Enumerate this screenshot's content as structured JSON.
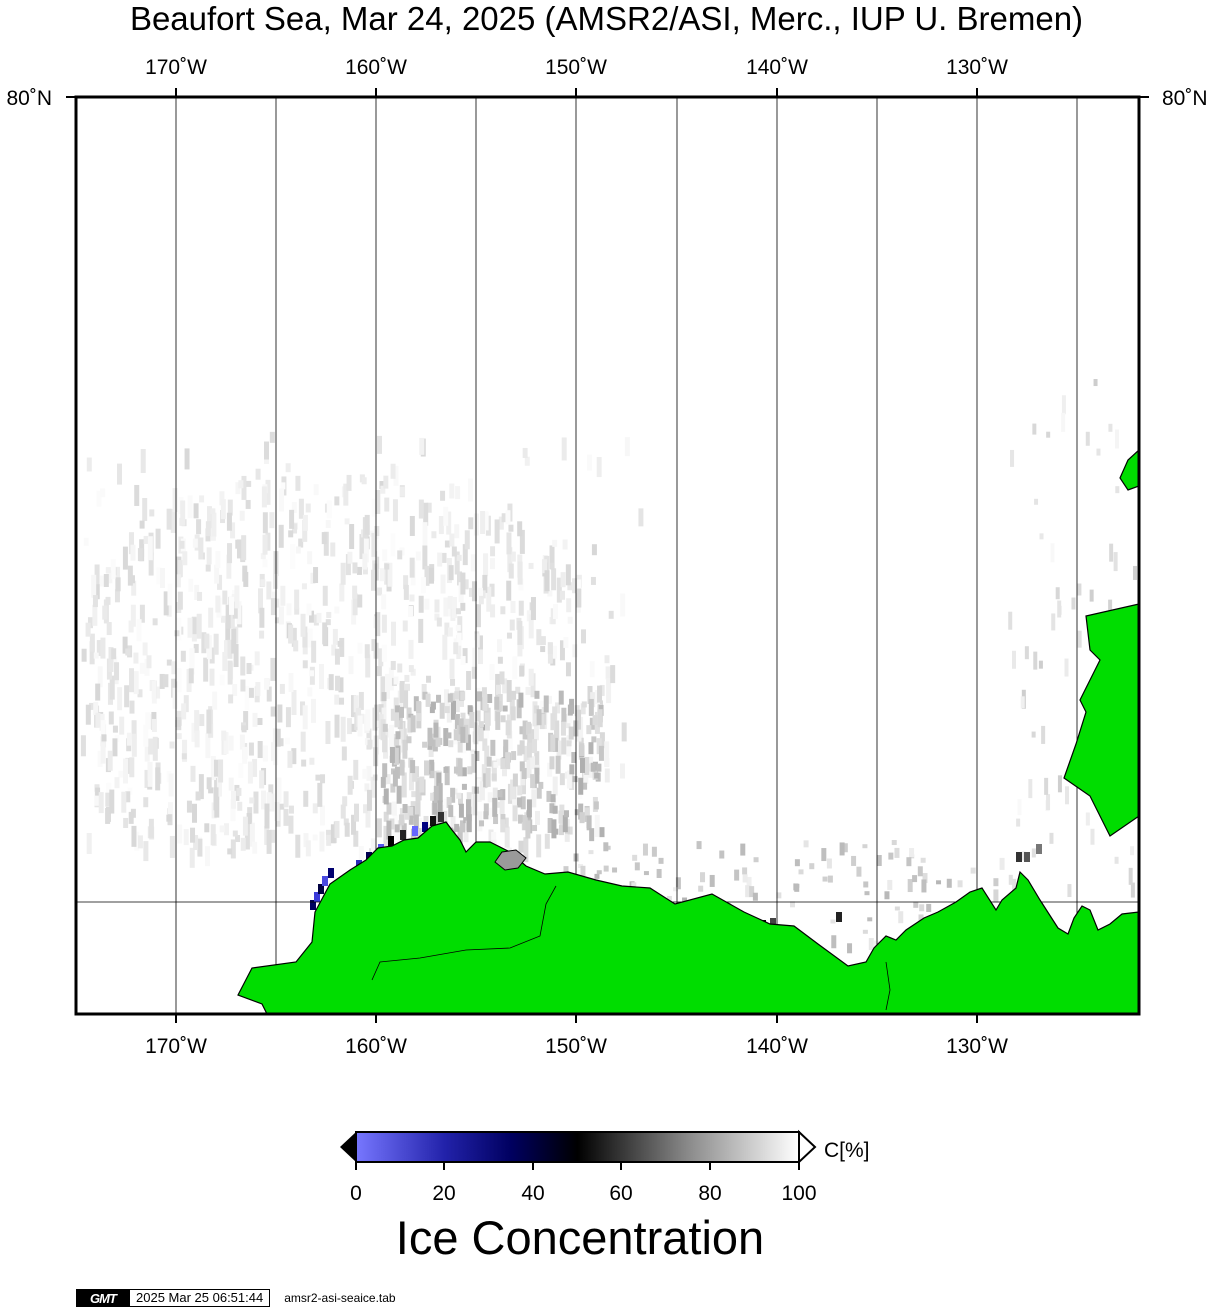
{
  "title": "Beaufort Sea, Mar 24, 2025 (AMSR2/ASI, Merc., IUP U. Bremen)",
  "map": {
    "lon_labels": [
      "170˚W",
      "160˚W",
      "150˚W",
      "140˚W",
      "130˚W"
    ],
    "lat_labels": [
      "80˚N",
      "80˚N"
    ],
    "land_color": "#00dd00",
    "ocean_color": "#ffffff",
    "frame_color": "#000000"
  },
  "colorbar": {
    "tick_labels": [
      "0",
      "20",
      "40",
      "60",
      "80",
      "100"
    ],
    "unit_label": "C[%]",
    "title": "Ice Concentration",
    "colors": [
      "#7777ff",
      "#000080",
      "#000000",
      "#808080",
      "#ffffff"
    ]
  },
  "stamp": {
    "logo_text": "GMT",
    "timestamp": "2025 Mar 25 06:51:44",
    "file": "amsr2-asi-seaice.tab"
  }
}
